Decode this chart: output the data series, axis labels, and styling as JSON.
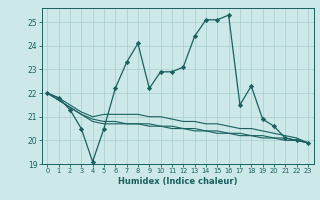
{
  "xlabel": "Humidex (Indice chaleur)",
  "ylabel": "",
  "background_color": "#cce8e8",
  "grid_color": "#aacece",
  "line_color": "#1a6060",
  "tick_color": "#1a6060",
  "xlim": [
    -0.5,
    23.5
  ],
  "ylim": [
    19,
    25.6
  ],
  "yticks": [
    19,
    20,
    21,
    22,
    23,
    24,
    25
  ],
  "xticks": [
    0,
    1,
    2,
    3,
    4,
    5,
    6,
    7,
    8,
    9,
    10,
    11,
    12,
    13,
    14,
    15,
    16,
    17,
    18,
    19,
    20,
    21,
    22,
    23
  ],
  "series1": [
    22.0,
    21.8,
    21.3,
    20.5,
    19.1,
    20.5,
    22.2,
    23.3,
    24.1,
    22.2,
    22.9,
    22.9,
    23.1,
    24.4,
    25.1,
    25.1,
    25.3,
    21.5,
    22.3,
    20.9,
    20.6,
    20.1,
    20.0,
    19.9
  ],
  "series2": [
    22.0,
    21.8,
    21.5,
    21.2,
    21.0,
    21.1,
    21.1,
    21.1,
    21.1,
    21.0,
    21.0,
    20.9,
    20.8,
    20.8,
    20.7,
    20.7,
    20.6,
    20.5,
    20.5,
    20.4,
    20.3,
    20.2,
    20.1,
    19.9
  ],
  "series3": [
    22.0,
    21.7,
    21.4,
    21.1,
    20.8,
    20.7,
    20.7,
    20.7,
    20.7,
    20.6,
    20.6,
    20.5,
    20.5,
    20.4,
    20.4,
    20.3,
    20.3,
    20.2,
    20.2,
    20.1,
    20.1,
    20.0,
    20.0,
    19.9
  ],
  "series4": [
    22.0,
    21.7,
    21.4,
    21.1,
    20.9,
    20.8,
    20.8,
    20.7,
    20.7,
    20.7,
    20.6,
    20.6,
    20.5,
    20.5,
    20.4,
    20.4,
    20.3,
    20.3,
    20.2,
    20.2,
    20.1,
    20.1,
    20.0,
    19.9
  ]
}
